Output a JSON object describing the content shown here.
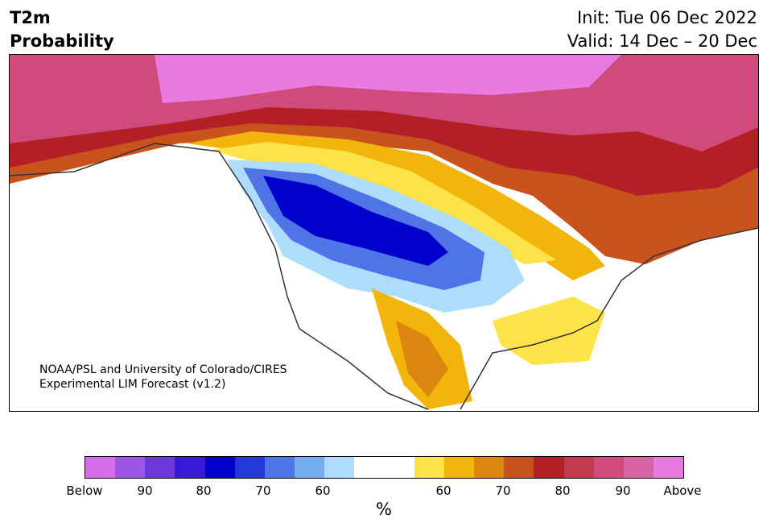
{
  "title": {
    "line1": "T2m",
    "line2": "Probability"
  },
  "header": {
    "init": "Init: Tue 06 Dec 2022",
    "valid": "Valid: 14 Dec – 20 Dec"
  },
  "map": {
    "credit_line1": "NOAA/PSL and University of Colorado/CIRES",
    "credit_line2": "Experimental LIM Forecast (v1.2)"
  },
  "colorbar": {
    "colors": [
      "#d76ee9",
      "#9e56e6",
      "#6d38d8",
      "#3a19d4",
      "#0000cc",
      "#2338d8",
      "#4f74e8",
      "#74aef0",
      "#aeddfb",
      "#ffffff",
      "#ffffff",
      "#fde34a",
      "#f1b50c",
      "#dd860f",
      "#c8531c",
      "#b21f24",
      "#c03a50",
      "#cf4b7c",
      "#d865a6",
      "#e87ae0"
    ],
    "labels": [
      "Below",
      "90",
      "80",
      "70",
      "60",
      "60",
      "70",
      "80",
      "90",
      "Above"
    ],
    "unit": "%"
  }
}
